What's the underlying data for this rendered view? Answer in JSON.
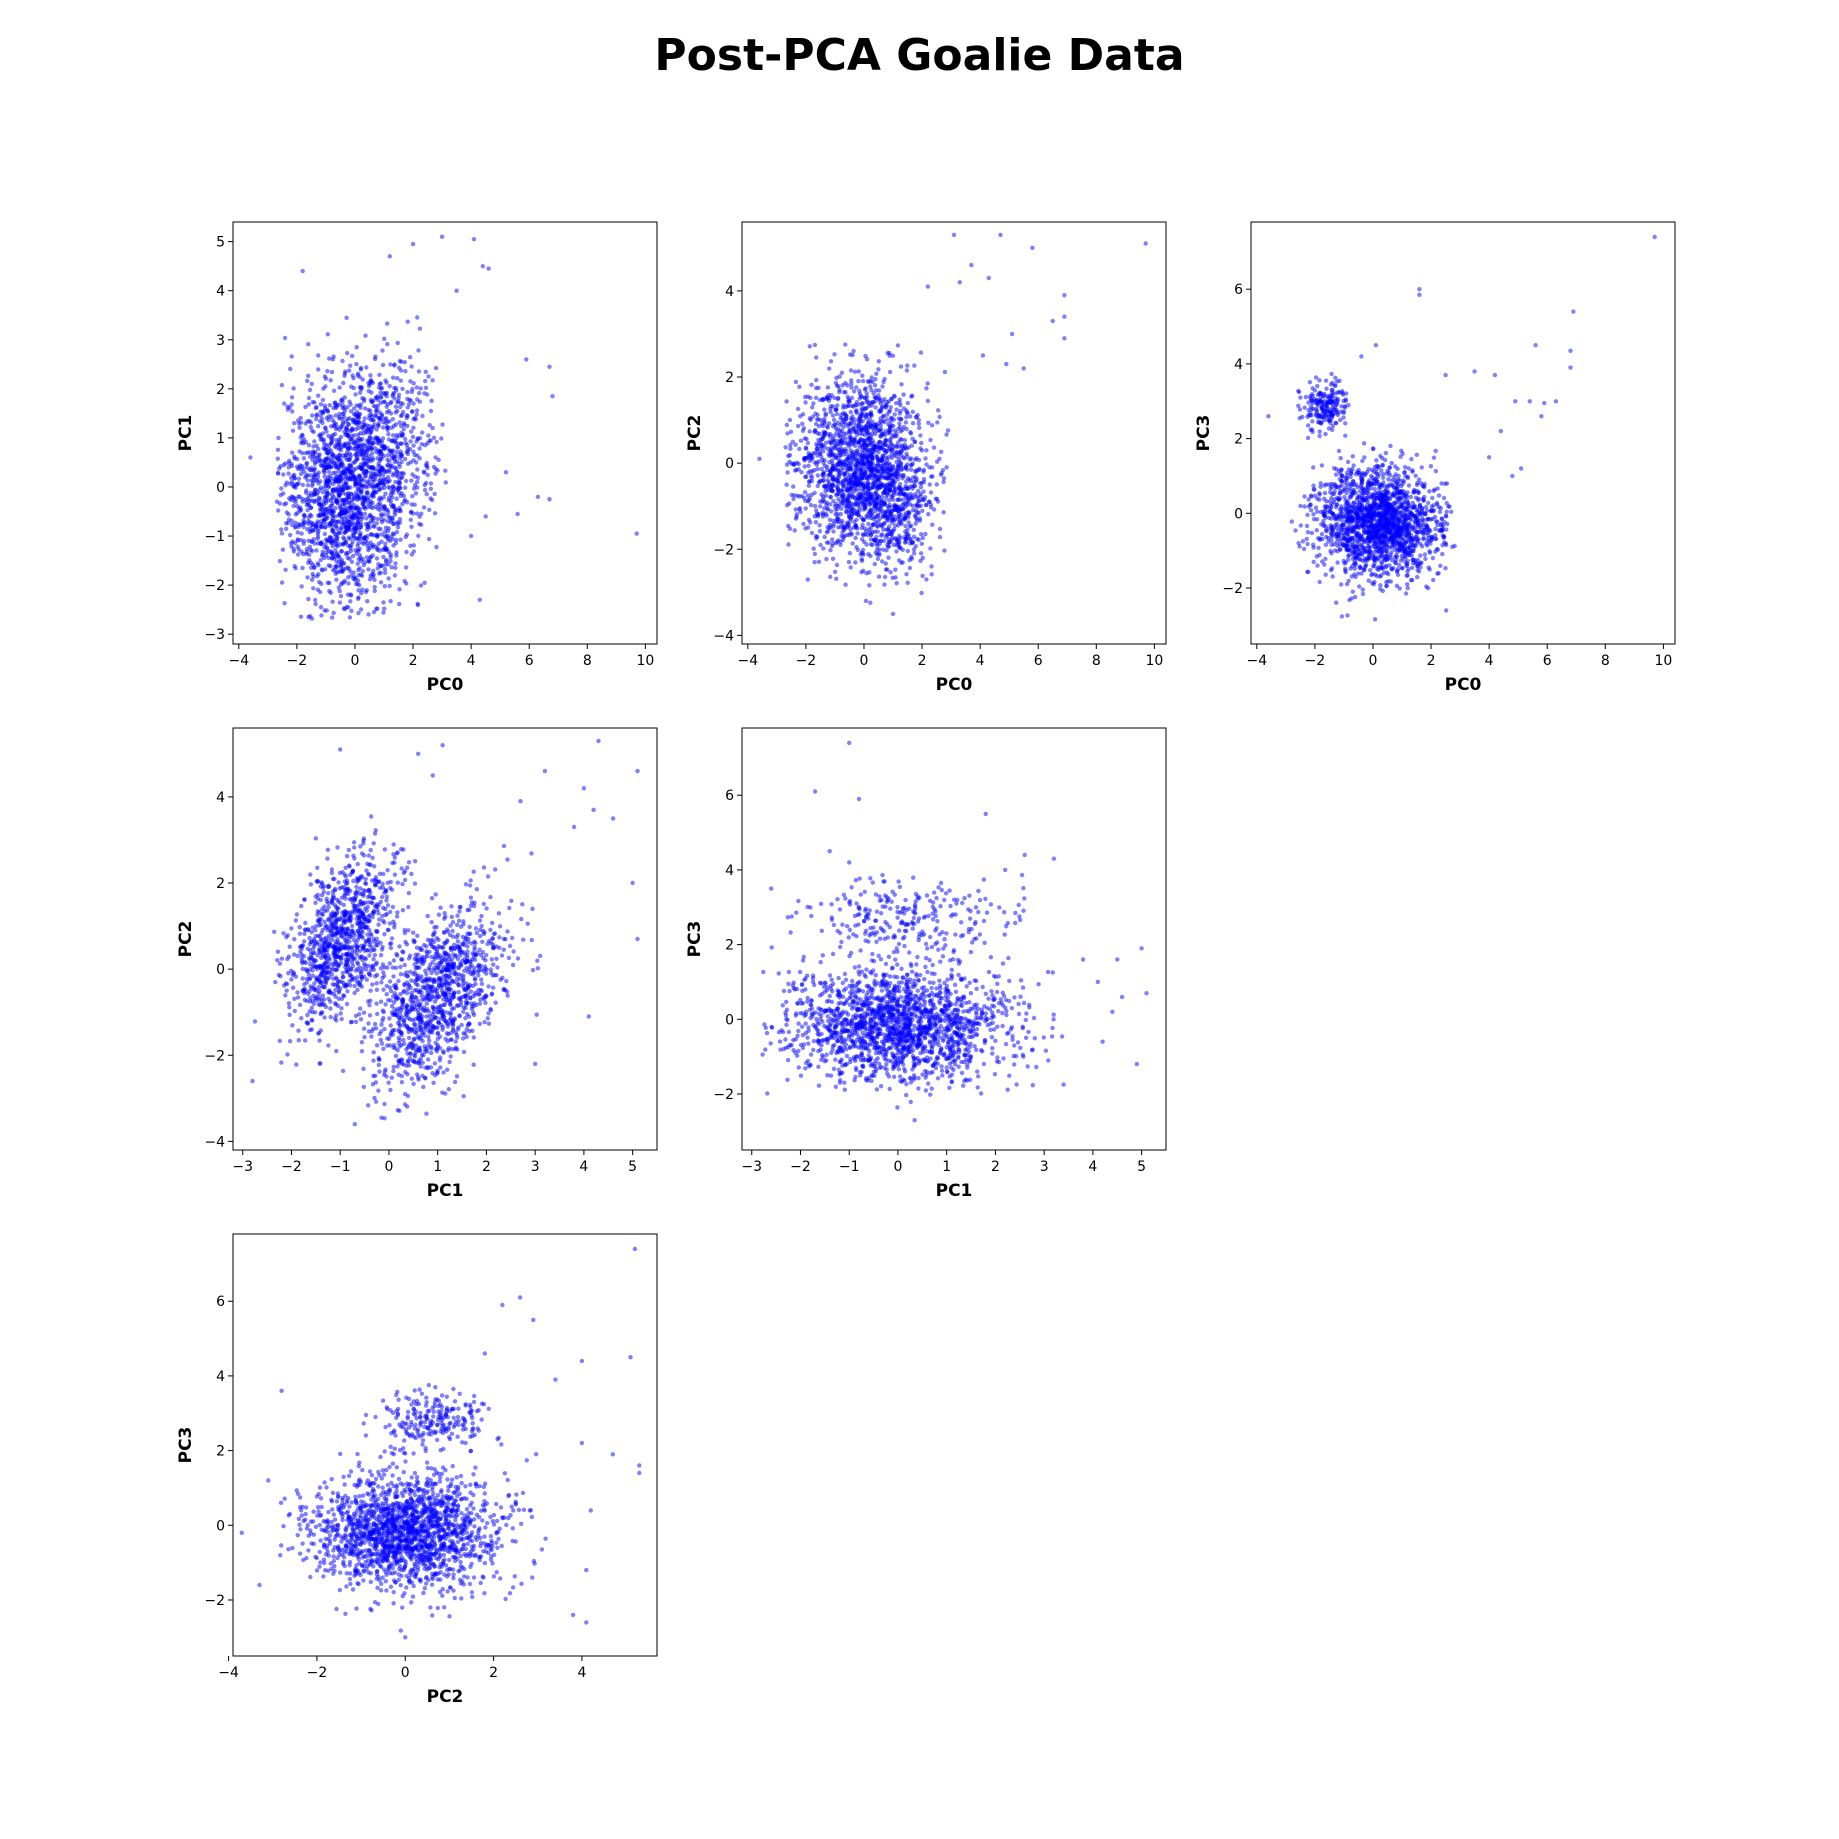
{
  "figure": {
    "title": "Post-PCA Goalie Data",
    "point_color": "#0000ff"
  },
  "chart_data": [
    {
      "type": "scatter",
      "row": 0,
      "col": 0,
      "xlabel": "PC0",
      "ylabel": "PC1",
      "xlim": [
        -4.2,
        10.4
      ],
      "ylim": [
        -3.2,
        5.4
      ],
      "xticks": [
        -4,
        -2,
        0,
        2,
        4,
        6,
        8,
        10
      ],
      "yticks": [
        -3,
        -2,
        -1,
        0,
        1,
        2,
        3,
        4,
        5
      ],
      "clusters": [
        {
          "cx": -0.3,
          "cy": -0.1,
          "sx": 1.1,
          "sy": 1.15,
          "n": 1700,
          "xmin": -2.7,
          "xmax": 2.8,
          "ymin": -2.7,
          "ymax": 3.2
        },
        {
          "cx": 1.3,
          "cy": 1.0,
          "sx": 0.9,
          "sy": 1.0,
          "n": 350,
          "xmin": -0.5,
          "xmax": 3.2,
          "ymin": -1.5,
          "ymax": 3.6
        }
      ],
      "outliers": [
        [
          9.7,
          -0.95
        ],
        [
          6.8,
          1.85
        ],
        [
          6.7,
          2.45
        ],
        [
          5.9,
          2.6
        ],
        [
          6.7,
          -0.25
        ],
        [
          6.3,
          -0.2
        ],
        [
          5.6,
          -0.55
        ],
        [
          4.1,
          5.05
        ],
        [
          3.0,
          5.1
        ],
        [
          2.0,
          4.95
        ],
        [
          4.6,
          4.45
        ],
        [
          4.4,
          4.5
        ],
        [
          1.2,
          4.7
        ],
        [
          -1.8,
          4.4
        ],
        [
          4.5,
          -0.6
        ],
        [
          3.5,
          4.0
        ],
        [
          5.2,
          0.3
        ],
        [
          4.0,
          -1.0
        ],
        [
          -3.6,
          0.6
        ],
        [
          4.3,
          -2.3
        ]
      ]
    },
    {
      "type": "scatter",
      "row": 0,
      "col": 1,
      "xlabel": "PC0",
      "ylabel": "PC2",
      "xlim": [
        -4.2,
        10.4
      ],
      "ylim": [
        -4.2,
        5.6
      ],
      "xticks": [
        -4,
        -2,
        0,
        2,
        4,
        6,
        8,
        10
      ],
      "yticks": [
        -4,
        -2,
        0,
        2,
        4
      ],
      "clusters": [
        {
          "cx": -0.2,
          "cy": -0.1,
          "sx": 1.1,
          "sy": 1.05,
          "n": 1700,
          "xmin": -2.8,
          "xmax": 3.0,
          "ymin": -2.9,
          "ymax": 2.8
        },
        {
          "cx": 1.2,
          "cy": -0.9,
          "sx": 0.7,
          "sy": 0.8,
          "n": 300,
          "xmin": -0.5,
          "xmax": 2.8,
          "ymin": -3.6,
          "ymax": 1.5
        }
      ],
      "outliers": [
        [
          9.7,
          5.1
        ],
        [
          6.9,
          3.9
        ],
        [
          6.9,
          3.4
        ],
        [
          6.9,
          2.9
        ],
        [
          5.8,
          5.0
        ],
        [
          4.7,
          5.3
        ],
        [
          3.1,
          5.3
        ],
        [
          4.9,
          2.3
        ],
        [
          4.3,
          4.3
        ],
        [
          5.5,
          2.2
        ],
        [
          3.7,
          4.6
        ],
        [
          4.1,
          2.5
        ],
        [
          3.3,
          4.2
        ],
        [
          -3.6,
          0.1
        ],
        [
          1.0,
          -3.5
        ],
        [
          5.1,
          3.0
        ],
        [
          6.5,
          3.3
        ],
        [
          2.2,
          4.1
        ]
      ]
    },
    {
      "type": "scatter",
      "row": 0,
      "col": 2,
      "xlabel": "PC0",
      "ylabel": "PC3",
      "xlim": [
        -4.2,
        10.4
      ],
      "ylim": [
        -3.5,
        7.8
      ],
      "xticks": [
        -4,
        -2,
        0,
        2,
        4,
        6,
        8,
        10
      ],
      "yticks": [
        -2,
        0,
        2,
        4,
        6
      ],
      "clusters": [
        {
          "cx": 0.2,
          "cy": -0.25,
          "sx": 1.05,
          "sy": 0.75,
          "n": 1800,
          "xmin": -2.8,
          "xmax": 3.0,
          "ymin": -2.9,
          "ymax": 2.0
        },
        {
          "cx": -1.6,
          "cy": 2.85,
          "sx": 0.4,
          "sy": 0.35,
          "n": 200,
          "xmin": -2.6,
          "xmax": -0.8,
          "ymin": 1.9,
          "ymax": 3.9
        }
      ],
      "outliers": [
        [
          9.7,
          7.4
        ],
        [
          1.6,
          6.0
        ],
        [
          1.6,
          5.85
        ],
        [
          6.9,
          5.4
        ],
        [
          6.8,
          4.35
        ],
        [
          6.8,
          3.9
        ],
        [
          5.6,
          4.5
        ],
        [
          5.4,
          3.0
        ],
        [
          5.9,
          2.95
        ],
        [
          6.3,
          3.0
        ],
        [
          4.2,
          3.7
        ],
        [
          4.9,
          3.0
        ],
        [
          5.1,
          1.2
        ],
        [
          4.8,
          1.0
        ],
        [
          -3.6,
          2.6
        ],
        [
          4.4,
          2.2
        ],
        [
          3.5,
          3.8
        ],
        [
          2.5,
          3.7
        ],
        [
          -0.4,
          4.2
        ],
        [
          0.1,
          4.5
        ],
        [
          4.0,
          1.5
        ],
        [
          5.8,
          2.6
        ]
      ]
    },
    {
      "type": "scatter",
      "row": 1,
      "col": 0,
      "xlabel": "PC1",
      "ylabel": "PC2",
      "xlim": [
        -3.2,
        5.5
      ],
      "ylim": [
        -4.2,
        5.6
      ],
      "xticks": [
        -3,
        -2,
        -1,
        0,
        1,
        2,
        3,
        4,
        5
      ],
      "yticks": [
        -4,
        -2,
        0,
        2,
        4
      ],
      "clusters": [
        {
          "cx": -1.0,
          "cy": 0.6,
          "sx": 0.55,
          "sy": 0.9,
          "rot": 0.85,
          "n": 1000,
          "xmin": -2.8,
          "xmax": 0.8,
          "ymin": -2.8,
          "ymax": 3.6
        },
        {
          "cx": 1.0,
          "cy": -0.6,
          "sx": 0.7,
          "sy": 0.9,
          "rot": 0.8,
          "n": 1100,
          "xmin": -0.7,
          "xmax": 3.6,
          "ymin": -3.6,
          "ymax": 3.2
        }
      ],
      "outliers": [
        [
          4.3,
          5.3
        ],
        [
          5.1,
          4.6
        ],
        [
          3.2,
          4.6
        ],
        [
          -1.0,
          5.1
        ],
        [
          1.1,
          5.2
        ],
        [
          0.6,
          5.0
        ],
        [
          4.2,
          3.7
        ],
        [
          5.0,
          2.0
        ],
        [
          5.1,
          0.7
        ],
        [
          4.1,
          -1.1
        ],
        [
          3.0,
          -2.2
        ],
        [
          4.0,
          4.2
        ],
        [
          4.6,
          3.5
        ],
        [
          0.9,
          4.5
        ],
        [
          -2.8,
          -2.6
        ],
        [
          -0.7,
          -3.6
        ],
        [
          2.7,
          3.9
        ],
        [
          3.8,
          3.3
        ]
      ]
    },
    {
      "type": "scatter",
      "row": 1,
      "col": 1,
      "xlabel": "PC1",
      "ylabel": "PC3",
      "xlim": [
        -3.2,
        5.5
      ],
      "ylim": [
        -3.5,
        7.8
      ],
      "xticks": [
        -3,
        -2,
        -1,
        0,
        1,
        2,
        3,
        4,
        5
      ],
      "yticks": [
        -2,
        0,
        2,
        4,
        6
      ],
      "clusters": [
        {
          "cx": 0.0,
          "cy": -0.15,
          "sx": 1.15,
          "sy": 0.75,
          "n": 1800,
          "xmin": -2.8,
          "xmax": 3.5,
          "ymin": -2.9,
          "ymax": 2.2
        },
        {
          "cx": 0.2,
          "cy": 2.7,
          "sx": 1.1,
          "sy": 0.5,
          "n": 250,
          "xmin": -2.3,
          "xmax": 2.6,
          "ymin": 1.5,
          "ymax": 3.9
        }
      ],
      "outliers": [
        [
          -1.0,
          7.4
        ],
        [
          -1.7,
          6.1
        ],
        [
          -0.8,
          5.9
        ],
        [
          1.8,
          5.5
        ],
        [
          2.6,
          4.4
        ],
        [
          3.2,
          4.3
        ],
        [
          -1.4,
          4.5
        ],
        [
          5.0,
          1.9
        ],
        [
          5.1,
          0.7
        ],
        [
          4.9,
          -1.2
        ],
        [
          4.6,
          0.6
        ],
        [
          4.2,
          -0.6
        ],
        [
          4.5,
          1.6
        ],
        [
          4.1,
          1.0
        ],
        [
          3.8,
          1.6
        ],
        [
          4.4,
          0.2
        ],
        [
          -1.0,
          4.2
        ],
        [
          2.2,
          4.0
        ],
        [
          -2.6,
          3.5
        ]
      ]
    },
    {
      "type": "scatter",
      "row": 2,
      "col": 0,
      "xlabel": "PC2",
      "ylabel": "PC3",
      "xlim": [
        -3.9,
        5.7
      ],
      "ylim": [
        -3.5,
        7.8
      ],
      "xticks": [
        -4,
        -2,
        0,
        2,
        4
      ],
      "yticks": [
        -2,
        0,
        2,
        4,
        6
      ],
      "clusters": [
        {
          "cx": 0.0,
          "cy": -0.15,
          "sx": 1.05,
          "sy": 0.75,
          "n": 1800,
          "xmin": -3.0,
          "xmax": 3.2,
          "ymin": -2.9,
          "ymax": 2.2
        },
        {
          "cx": 0.6,
          "cy": 2.8,
          "sx": 0.7,
          "sy": 0.4,
          "n": 220,
          "xmin": -1.5,
          "xmax": 2.6,
          "ymin": 1.8,
          "ymax": 3.9
        }
      ],
      "outliers": [
        [
          5.2,
          7.4
        ],
        [
          2.6,
          6.1
        ],
        [
          2.2,
          5.9
        ],
        [
          2.9,
          5.5
        ],
        [
          5.1,
          4.5
        ],
        [
          4.0,
          4.4
        ],
        [
          3.4,
          3.9
        ],
        [
          4.7,
          1.9
        ],
        [
          5.3,
          1.6
        ],
        [
          5.3,
          1.4
        ],
        [
          4.2,
          0.4
        ],
        [
          4.1,
          -1.2
        ],
        [
          4.1,
          -2.6
        ],
        [
          3.8,
          -2.4
        ],
        [
          -3.7,
          -0.2
        ],
        [
          -3.3,
          -1.6
        ],
        [
          -2.8,
          3.6
        ],
        [
          -3.1,
          1.2
        ],
        [
          0.0,
          -3.0
        ],
        [
          4.0,
          2.2
        ],
        [
          1.8,
          4.6
        ]
      ]
    }
  ]
}
